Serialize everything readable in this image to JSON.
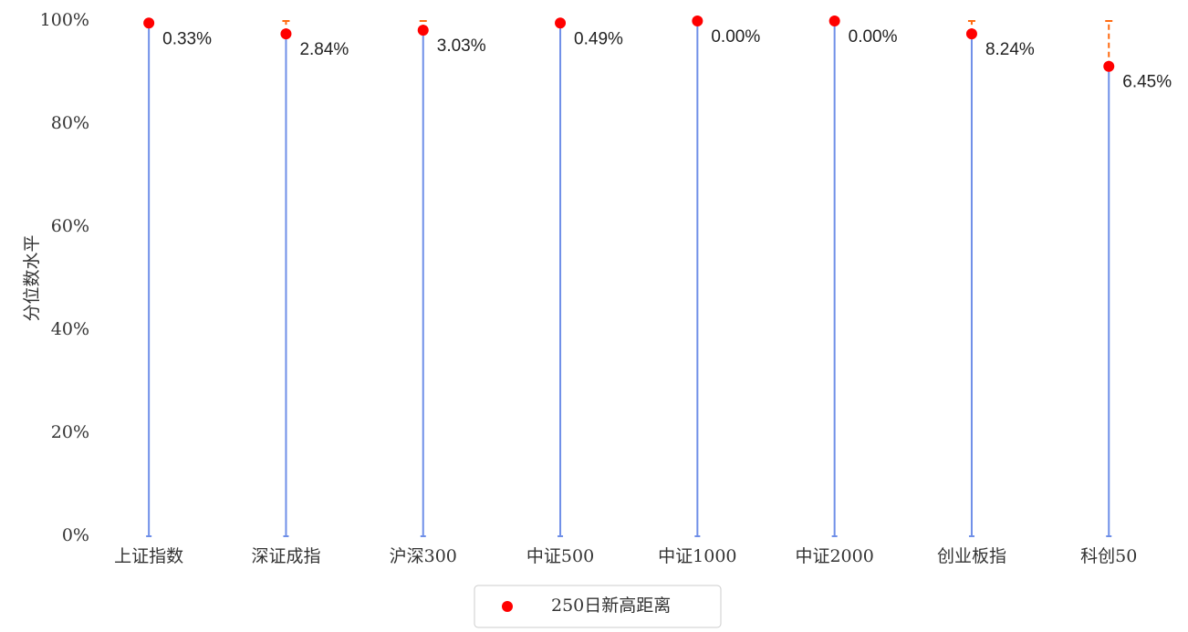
{
  "chart_data": {
    "type": "lollipop",
    "y_label": "分位数水平",
    "categories": [
      "上证指数",
      "深证成指",
      "沪深300",
      "中证500",
      "中证1000",
      "中证2000",
      "创业板指",
      "科创50"
    ],
    "series": [
      {
        "name": "250日新高距离",
        "color": "#ff0000",
        "values": [
          99.6,
          97.5,
          98.2,
          99.6,
          100,
          100,
          97.5,
          91.2
        ],
        "distance": {
          "values": [
            0.33,
            2.84,
            3.03,
            0.49,
            0.0,
            0.0,
            8.24,
            6.45
          ],
          "value_labels": [
            "0.33%",
            "2.84%",
            "3.03%",
            "0.49%",
            "0.00%",
            "0.00%",
            "8.24%",
            "6.45%"
          ]
        }
      }
    ],
    "stem_color": "#6f8fe8",
    "gap_color": "#ff6a10",
    "ylim": [
      0,
      100
    ],
    "yticks": [
      {
        "value": 0,
        "label": "0%"
      },
      {
        "value": 20,
        "label": "20%"
      },
      {
        "value": 40,
        "label": "40%"
      },
      {
        "value": 60,
        "label": "60%"
      },
      {
        "value": 80,
        "label": "80%"
      },
      {
        "value": 100,
        "label": "100%"
      }
    ],
    "legend": "bottom"
  }
}
